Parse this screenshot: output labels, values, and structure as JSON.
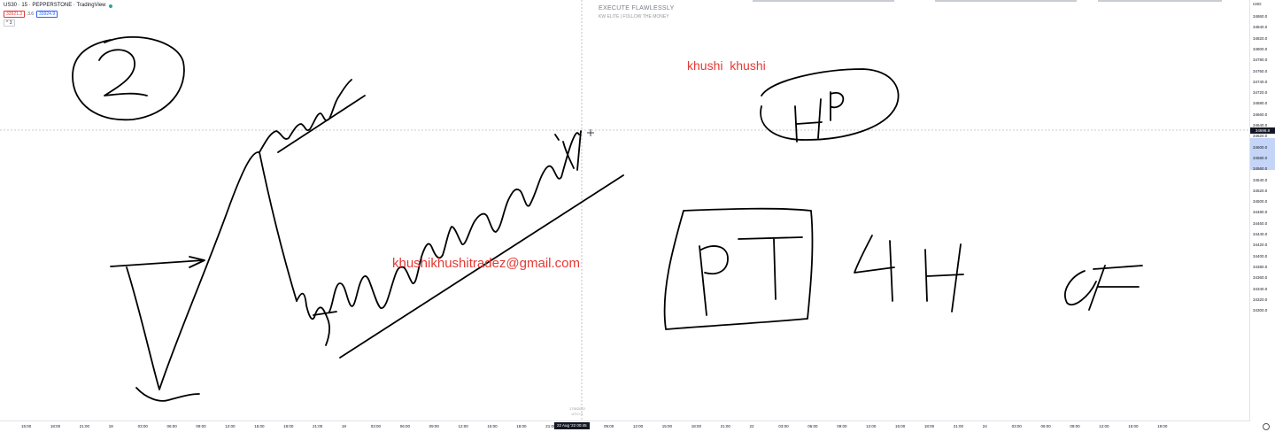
{
  "legend": {
    "symbol_line": "US30 · 15 · PEPPERSTONE · TradingView",
    "bid": "33921.3",
    "spread": "3.6",
    "ask": "33924.9",
    "collapse_label": "^ 3"
  },
  "watermark": {
    "title": "EXECUTE FLAWLESSLY",
    "subtitle": "KW ELITE | FOLLOW THE MONEY"
  },
  "annotations": {
    "name_text": "khushi  khushi",
    "email_text": "khushikhushitradez@gmail.com"
  },
  "colors": {
    "ink": "#000000",
    "overlay_red": "#e53935",
    "bid_red": "#e53935",
    "ask_blue": "#2962ff",
    "axis_highlight": "#c5d5f7"
  },
  "price_axis": {
    "top_label": "USD",
    "labels": [
      "34860.0",
      "34840.0",
      "34820.0",
      "34800.0",
      "34780.0",
      "34760.0",
      "34740.0",
      "34720.0",
      "34680.0",
      "34660.0",
      "34640.0",
      "34620.0",
      "34600.0",
      "34580.0",
      "34560.0",
      "34540.0",
      "34520.0",
      "34500.0",
      "34480.0",
      "34460.0",
      "34440.0",
      "34420.0",
      "34400.0",
      "34380.0",
      "34360.0",
      "34340.0",
      "34320.0",
      "34300.0"
    ],
    "current_price": "34698.8"
  },
  "time_axis": {
    "labels": [
      "15:00",
      "18:00",
      "21:00",
      "18",
      "03:00",
      "06:00",
      "09:00",
      "12:00",
      "15:00",
      "18:00",
      "21:00",
      "19",
      "03:00",
      "06:00",
      "09:00",
      "12:00",
      "15:00",
      "18:00",
      "21:00",
      "06:00",
      "09:00",
      "12:00",
      "15:00",
      "18:00",
      "21:00",
      "22",
      "03:00",
      "06:00",
      "09:00",
      "12:00",
      "15:00",
      "18:00",
      "21:00",
      "24",
      "03:00",
      "06:00",
      "09:00",
      "12:00",
      "15:00",
      "18:00"
    ],
    "current_time": "22 Aug '22  00:45",
    "date_stamp_line1": "17/8/2022",
    "date_stamp_line2": "UTC+1"
  }
}
